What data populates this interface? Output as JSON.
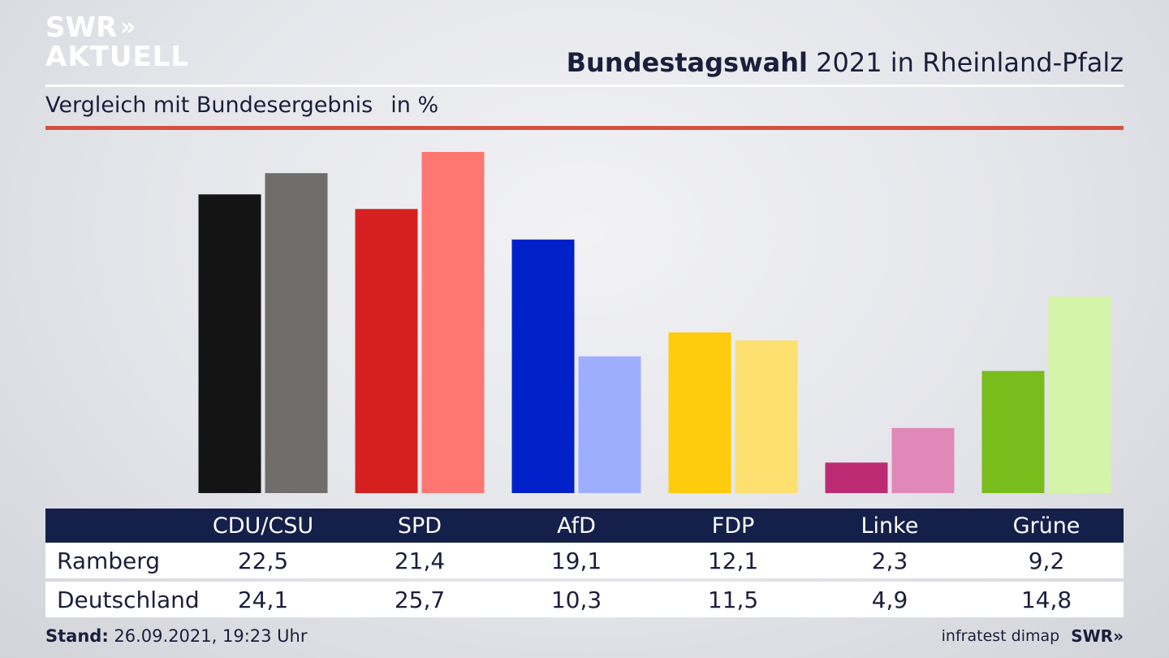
{
  "logo": {
    "line1": "SWR",
    "line2": "AKTUELL",
    "chevrons": "»"
  },
  "header": {
    "title_bold": "Bundestagswahl",
    "title_rest": " 2021 in Rheinland-Pfalz"
  },
  "subheader": {
    "subtitle": "Vergleich mit Bundesergebnis",
    "unit": "in %"
  },
  "colors": {
    "CDU/CSU": [
      "#141414",
      "#6f6e6c"
    ],
    "SPD": [
      "#d61f1f",
      "#ff7770"
    ],
    "AfD": [
      "#0021c9",
      "#9eaefe"
    ],
    "FDP": [
      "#fecb0d",
      "#fde070"
    ],
    "Linke": [
      "#be2b75",
      "#e089b8"
    ],
    "Grüne": [
      "#78bd1c",
      "#d4f5a8"
    ],
    "header_bg": "#14204a",
    "accent_rule": "#d5513f"
  },
  "chart_data": {
    "type": "bar",
    "title": "Bundestagswahl 2021 in Rheinland-Pfalz",
    "subtitle": "Vergleich mit Bundesergebnis   in %",
    "categories": [
      "CDU/CSU",
      "SPD",
      "AfD",
      "FDP",
      "Linke",
      "Grüne"
    ],
    "series": [
      {
        "name": "Ramberg",
        "values": [
          "22,5",
          "21,4",
          "19,1",
          "12,1",
          "2,3",
          "9,2"
        ]
      },
      {
        "name": "Deutschland",
        "values": [
          "24,1",
          "25,7",
          "10,3",
          "11,5",
          "4,9",
          "14,8"
        ]
      }
    ],
    "ylim": [
      0,
      26
    ]
  },
  "footer": {
    "stand_label": "Stand:",
    "stand_value": " 26.09.2021, 19:23 Uhr",
    "source": "infratest dimap",
    "brand": "SWR»"
  }
}
